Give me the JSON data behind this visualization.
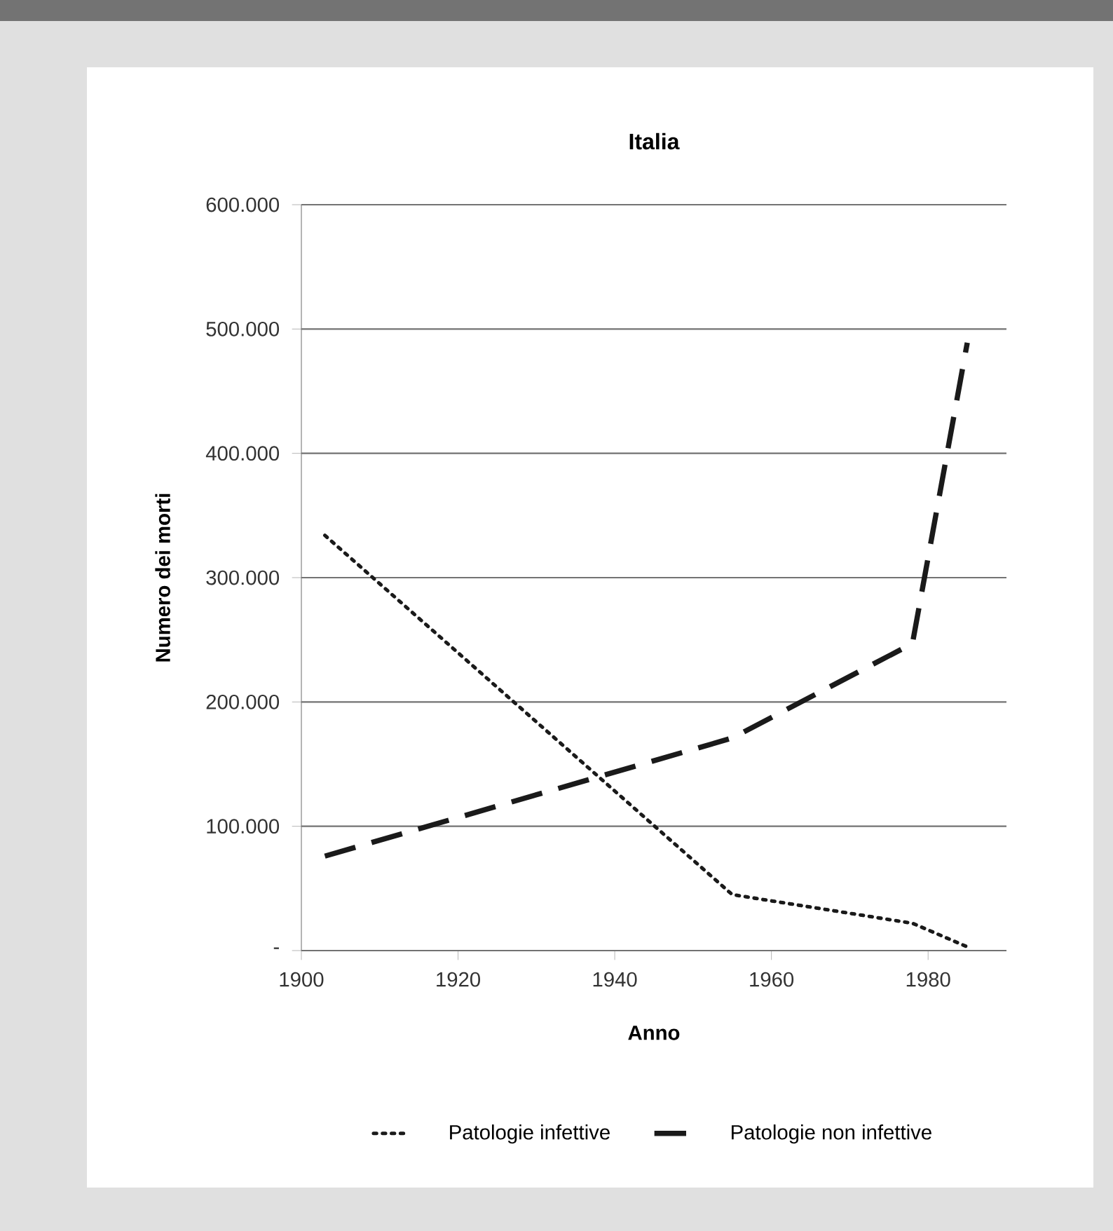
{
  "chart_data": {
    "type": "line",
    "title": "Italia",
    "xlabel": "Anno",
    "ylabel": "Numero dei morti",
    "xlim": [
      1900,
      1990
    ],
    "xticks": [
      1900,
      1920,
      1940,
      1960,
      1980
    ],
    "ylim": [
      0,
      600000
    ],
    "yticks": [
      {
        "value": 0,
        "label": "-"
      },
      {
        "value": 100000,
        "label": "100.000"
      },
      {
        "value": 200000,
        "label": "200.000"
      },
      {
        "value": 300000,
        "label": "300.000"
      },
      {
        "value": 400000,
        "label": "400.000"
      },
      {
        "value": 500000,
        "label": "500.000"
      },
      {
        "value": 600000,
        "label": "600.000"
      }
    ],
    "grid": "y",
    "legend": "bottom",
    "marker": "none",
    "series": [
      {
        "name": "Patologie infettive",
        "color": "#1a1a1a",
        "line_style": "dotted",
        "x": [
          1903,
          1955,
          1978,
          1985
        ],
        "values": [
          334000,
          45000,
          22000,
          3000
        ]
      },
      {
        "name": "Patologie non infettive",
        "color": "#1a1a1a",
        "line_style": "dashed",
        "x": [
          1903,
          1955,
          1978,
          1985
        ],
        "values": [
          76000,
          171000,
          247000,
          489000
        ]
      }
    ]
  }
}
